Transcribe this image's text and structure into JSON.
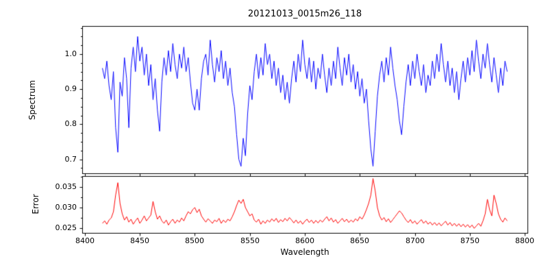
{
  "chart_data": {
    "type": "line",
    "title": "20121013_0015m26_118",
    "xlabel": "Wavelength",
    "xlim": [
      8397.6,
      8802.4
    ],
    "x_ticks": [
      8400,
      8450,
      8500,
      8550,
      8600,
      8650,
      8700,
      8750,
      8800
    ],
    "grid": false,
    "legend": "none",
    "x": [
      8416,
      8418,
      8420,
      8422,
      8424,
      8426,
      8428,
      8430,
      8432,
      8434,
      8436,
      8438,
      8440,
      8442,
      8444,
      8446,
      8448,
      8450,
      8452,
      8454,
      8456,
      8458,
      8460,
      8462,
      8464,
      8466,
      8468,
      8470,
      8472,
      8474,
      8476,
      8478,
      8480,
      8482,
      8484,
      8486,
      8488,
      8490,
      8492,
      8494,
      8496,
      8498,
      8500,
      8502,
      8504,
      8506,
      8508,
      8510,
      8512,
      8514,
      8516,
      8518,
      8520,
      8522,
      8524,
      8526,
      8528,
      8530,
      8532,
      8534,
      8536,
      8538,
      8540,
      8542,
      8544,
      8546,
      8548,
      8550,
      8552,
      8554,
      8556,
      8558,
      8560,
      8562,
      8564,
      8566,
      8568,
      8570,
      8572,
      8574,
      8576,
      8578,
      8580,
      8582,
      8584,
      8586,
      8588,
      8590,
      8592,
      8594,
      8596,
      8598,
      8600,
      8602,
      8604,
      8606,
      8608,
      8610,
      8612,
      8614,
      8616,
      8618,
      8620,
      8622,
      8624,
      8626,
      8628,
      8630,
      8632,
      8634,
      8636,
      8638,
      8640,
      8642,
      8644,
      8646,
      8648,
      8650,
      8652,
      8654,
      8656,
      8658,
      8660,
      8662,
      8664,
      8666,
      8668,
      8670,
      8672,
      8674,
      8676,
      8678,
      8680,
      8682,
      8684,
      8686,
      8688,
      8690,
      8692,
      8694,
      8696,
      8698,
      8700,
      8702,
      8704,
      8706,
      8708,
      8710,
      8712,
      8714,
      8716,
      8718,
      8720,
      8722,
      8724,
      8726,
      8728,
      8730,
      8732,
      8734,
      8736,
      8738,
      8740,
      8742,
      8744,
      8746,
      8748,
      8750,
      8752,
      8754,
      8756,
      8758,
      8760,
      8762,
      8764,
      8766,
      8768,
      8770,
      8772,
      8774,
      8776,
      8778,
      8780,
      8782,
      8784
    ],
    "panels": [
      {
        "name": "spectrum",
        "ylabel": "Spectrum",
        "color": "#0000ff",
        "ylim": [
          0.66,
          1.08
        ],
        "y_ticks": [
          0.7,
          0.8,
          0.9,
          1.0
        ],
        "y_tick_labels": [
          "0.7",
          "0.8",
          "0.9",
          "1.0"
        ],
        "y_minor_step": 0.025,
        "values": [
          0.96,
          0.93,
          0.98,
          0.91,
          0.87,
          0.95,
          0.79,
          0.72,
          0.92,
          0.88,
          0.99,
          0.93,
          0.79,
          0.96,
          1.02,
          0.95,
          1.05,
          0.98,
          1.02,
          0.94,
          1.0,
          0.91,
          0.97,
          0.87,
          0.93,
          0.84,
          0.78,
          0.92,
          0.99,
          0.94,
          1.01,
          0.95,
          1.03,
          0.97,
          0.93,
          1.0,
          0.96,
          1.02,
          0.95,
          0.99,
          0.92,
          0.86,
          0.84,
          0.9,
          0.84,
          0.93,
          0.98,
          1.0,
          0.94,
          1.04,
          0.97,
          0.92,
          0.99,
          0.95,
          1.01,
          0.93,
          0.98,
          0.91,
          0.96,
          0.89,
          0.85,
          0.77,
          0.7,
          0.68,
          0.76,
          0.71,
          0.83,
          0.91,
          0.87,
          0.95,
          1.0,
          0.93,
          0.99,
          0.94,
          1.03,
          0.97,
          1.0,
          0.93,
          0.98,
          0.91,
          0.96,
          0.89,
          0.94,
          0.87,
          0.92,
          0.86,
          0.93,
          0.98,
          0.92,
          1.0,
          0.95,
          1.04,
          0.97,
          0.93,
          0.99,
          0.92,
          0.98,
          0.9,
          0.96,
          0.93,
          1.0,
          0.94,
          0.89,
          0.96,
          0.91,
          0.98,
          0.93,
          1.02,
          0.96,
          0.91,
          0.99,
          0.94,
          1.0,
          0.92,
          0.97,
          0.9,
          0.95,
          0.88,
          0.93,
          0.86,
          0.9,
          0.81,
          0.73,
          0.68,
          0.78,
          0.88,
          0.94,
          0.98,
          0.92,
          0.99,
          0.94,
          1.02,
          0.96,
          0.91,
          0.87,
          0.81,
          0.77,
          0.85,
          0.92,
          0.97,
          0.91,
          0.98,
          0.93,
          1.0,
          0.95,
          0.91,
          0.97,
          0.89,
          0.94,
          0.91,
          0.98,
          0.93,
          1.0,
          0.95,
          1.03,
          0.97,
          0.92,
          0.98,
          0.91,
          0.96,
          0.89,
          0.95,
          0.87,
          0.93,
          0.98,
          0.92,
          0.99,
          0.94,
          1.01,
          0.95,
          1.04,
          0.98,
          0.93,
          1.0,
          0.96,
          1.03,
          0.97,
          0.92,
          0.99,
          0.94,
          0.89,
          0.96,
          0.91,
          0.98,
          0.95
        ]
      },
      {
        "name": "error",
        "ylabel": "Error",
        "color": "#ff0000",
        "ylim": [
          0.0239,
          0.0376
        ],
        "y_ticks": [
          0.025,
          0.03,
          0.035
        ],
        "y_tick_labels": [
          "0.025",
          "0.030",
          "0.035"
        ],
        "y_minor_step": 0.0025,
        "values": [
          0.0262,
          0.0268,
          0.026,
          0.027,
          0.0275,
          0.029,
          0.033,
          0.036,
          0.031,
          0.0285,
          0.027,
          0.0278,
          0.0265,
          0.0272,
          0.026,
          0.0268,
          0.0275,
          0.0262,
          0.027,
          0.028,
          0.0268,
          0.0275,
          0.0282,
          0.0315,
          0.029,
          0.0272,
          0.028,
          0.0268,
          0.0262,
          0.027,
          0.0258,
          0.0266,
          0.0272,
          0.0262,
          0.027,
          0.0265,
          0.0275,
          0.0268,
          0.028,
          0.029,
          0.0285,
          0.0295,
          0.03,
          0.0288,
          0.0296,
          0.028,
          0.0272,
          0.0265,
          0.0273,
          0.0268,
          0.0262,
          0.027,
          0.0266,
          0.0274,
          0.0262,
          0.027,
          0.0264,
          0.0272,
          0.0268,
          0.0278,
          0.029,
          0.0305,
          0.0318,
          0.031,
          0.032,
          0.03,
          0.029,
          0.028,
          0.0285,
          0.027,
          0.0265,
          0.0272,
          0.026,
          0.0268,
          0.0262,
          0.027,
          0.0265,
          0.0273,
          0.0267,
          0.0274,
          0.0264,
          0.0271,
          0.0266,
          0.0274,
          0.0268,
          0.0276,
          0.027,
          0.0263,
          0.027,
          0.0262,
          0.0268,
          0.026,
          0.0267,
          0.0272,
          0.0264,
          0.027,
          0.0262,
          0.0269,
          0.0263,
          0.027,
          0.0265,
          0.0272,
          0.0278,
          0.0268,
          0.0275,
          0.0265,
          0.0271,
          0.0262,
          0.0268,
          0.0274,
          0.0266,
          0.0272,
          0.0264,
          0.027,
          0.0265,
          0.0273,
          0.0268,
          0.0278,
          0.0272,
          0.0282,
          0.0295,
          0.031,
          0.033,
          0.037,
          0.034,
          0.03,
          0.028,
          0.027,
          0.0276,
          0.0266,
          0.0273,
          0.0264,
          0.0271,
          0.0278,
          0.0285,
          0.0292,
          0.0287,
          0.0278,
          0.027,
          0.0264,
          0.0271,
          0.0262,
          0.0268,
          0.026,
          0.0266,
          0.0271,
          0.0262,
          0.0268,
          0.026,
          0.0265,
          0.0258,
          0.0264,
          0.0257,
          0.0263,
          0.0256,
          0.0262,
          0.0267,
          0.0258,
          0.0264,
          0.0256,
          0.0262,
          0.0255,
          0.0261,
          0.0254,
          0.026,
          0.0253,
          0.0259,
          0.0252,
          0.0258,
          0.025,
          0.0256,
          0.0262,
          0.0255,
          0.0268,
          0.0285,
          0.032,
          0.0295,
          0.028,
          0.033,
          0.031,
          0.0285,
          0.0272,
          0.0265,
          0.0275,
          0.0268
        ]
      }
    ]
  }
}
